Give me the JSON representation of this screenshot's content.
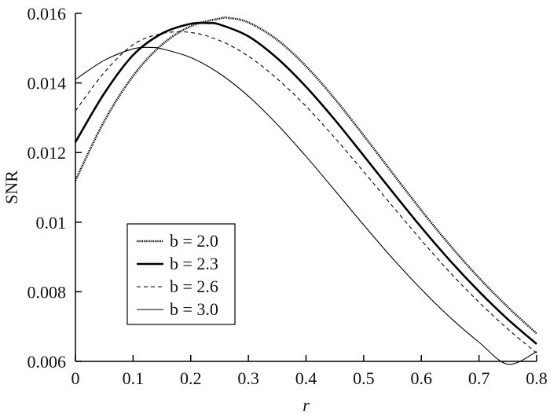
{
  "chart_data": {
    "type": "line",
    "xlabel": "r",
    "ylabel": "SNR",
    "xlim": [
      0,
      0.8
    ],
    "ylim": [
      0.006,
      0.016
    ],
    "x_ticks": [
      0,
      0.1,
      0.2,
      0.3,
      0.4,
      0.5,
      0.6,
      0.7,
      0.8
    ],
    "x_tick_labels": [
      "0",
      "0.1",
      "0.2",
      "0.3",
      "0.4",
      "0.5",
      "0.6",
      "0.7",
      "0.8"
    ],
    "y_ticks": [
      0.006,
      0.008,
      0.01,
      0.012,
      0.014,
      0.016
    ],
    "y_tick_labels": [
      "0.006",
      "0.008",
      "0.01",
      "0.012",
      "0.014",
      "0.016"
    ],
    "grid": false,
    "legend_position": "lower-left",
    "series": [
      {
        "name": "b = 2.0",
        "style": "dotted",
        "x": [
          0,
          0.05,
          0.1,
          0.15,
          0.2,
          0.25,
          0.265,
          0.3,
          0.35,
          0.4,
          0.45,
          0.5,
          0.55,
          0.6,
          0.65,
          0.7,
          0.75,
          0.8
        ],
        "y": [
          0.0112,
          0.0129,
          0.0142,
          0.0151,
          0.01563,
          0.01585,
          0.01587,
          0.01574,
          0.01524,
          0.01448,
          0.01354,
          0.01249,
          0.01141,
          0.01034,
          0.00933,
          0.0084,
          0.00756,
          0.0068
        ]
      },
      {
        "name": "b = 2.3",
        "style": "solid-thick",
        "x": [
          0,
          0.05,
          0.1,
          0.15,
          0.2,
          0.23,
          0.25,
          0.3,
          0.35,
          0.4,
          0.45,
          0.5,
          0.55,
          0.6,
          0.65,
          0.7,
          0.75,
          0.8
        ],
        "y": [
          0.0123,
          0.0137,
          0.0148,
          0.01542,
          0.0157,
          0.01572,
          0.01568,
          0.01534,
          0.01471,
          0.01389,
          0.01294,
          0.01191,
          0.01087,
          0.00985,
          0.00889,
          0.00801,
          0.00721,
          0.0065
        ]
      },
      {
        "name": "b = 2.6",
        "style": "dashed",
        "x": [
          0,
          0.05,
          0.1,
          0.15,
          0.2,
          0.25,
          0.3,
          0.35,
          0.4,
          0.45,
          0.5,
          0.55,
          0.6,
          0.65,
          0.7,
          0.75,
          0.8
        ],
        "y": [
          0.0132,
          0.0143,
          0.0151,
          0.01542,
          0.01545,
          0.01522,
          0.01477,
          0.01412,
          0.01333,
          0.01242,
          0.01145,
          0.01046,
          0.00948,
          0.00855,
          0.0077,
          0.00693,
          0.00624
        ]
      },
      {
        "name": "b = 3.0",
        "style": "solid-thin",
        "x": [
          0,
          0.05,
          0.1,
          0.13,
          0.15,
          0.2,
          0.25,
          0.3,
          0.35,
          0.4,
          0.45,
          0.5,
          0.55,
          0.6,
          0.65,
          0.7,
          0.75,
          0.8
        ],
        "y": [
          0.0141,
          0.01465,
          0.01498,
          0.01502,
          0.01498,
          0.01473,
          0.01427,
          0.01362,
          0.01281,
          0.01189,
          0.01091,
          0.00992,
          0.00896,
          0.00807,
          0.00726,
          0.00655,
          0.00592,
          0.00628
        ]
      }
    ]
  }
}
